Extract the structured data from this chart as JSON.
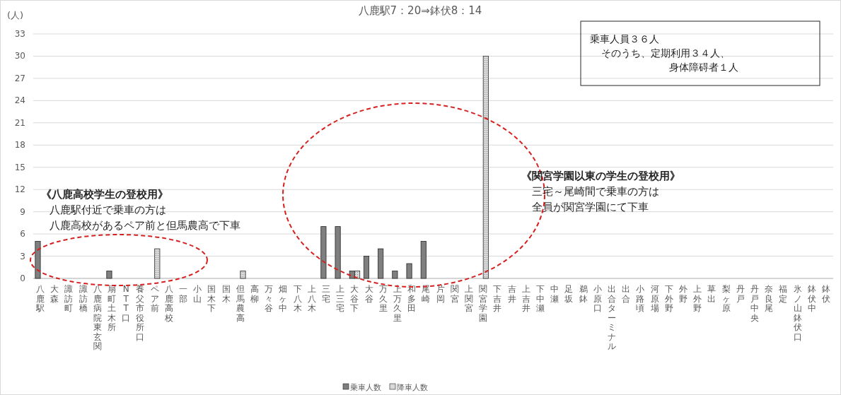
{
  "chart_data": {
    "type": "bar",
    "title": "八鹿駅7：20⇒鉢伏8：14",
    "ylabel": "(人)",
    "categories": [
      "八鹿駅",
      "大森",
      "諏訪町",
      "諏訪橋",
      "八鹿病院東玄関",
      "扇町土木所",
      "NTT口",
      "養父市役所口",
      "ペア前",
      "八鹿高校",
      "一部",
      "小山",
      "国木下",
      "国木",
      "但馬農高",
      "高柳",
      "万々谷",
      "畑ヶ中",
      "下八木",
      "上八木",
      "三宅",
      "上三宅",
      "大谷下",
      "大谷",
      "万久里",
      "上万久里",
      "和多田",
      "尾崎",
      "片岡",
      "関宮",
      "上関宮",
      "関宮学園",
      "下吉井",
      "吉井",
      "上吉井",
      "下中瀬",
      "中瀬",
      "足坂",
      "鵜鉢",
      "小原口",
      "出合ターミナル",
      "出合",
      "小路頃",
      "河原場",
      "下外野",
      "外野",
      "上外野",
      "草出",
      "梨ヶ原",
      "丹戸",
      "丹戸中央",
      "奈良尾",
      "福定",
      "氷ノ山鉢伏口",
      "鉢伏中",
      "鉢伏"
    ],
    "series": [
      {
        "name": "乗車人数",
        "color": "#7f7f7f",
        "values": [
          5,
          0,
          0,
          0,
          0,
          1,
          0,
          0,
          0,
          0,
          0,
          0,
          0,
          0,
          0,
          0,
          0,
          0,
          0,
          0,
          7,
          7,
          1,
          3,
          4,
          1,
          2,
          5,
          0,
          0,
          0,
          0,
          0,
          0,
          0,
          0,
          0,
          0,
          0,
          0,
          0,
          0,
          0,
          0,
          0,
          0,
          0,
          0,
          0,
          0,
          0,
          0,
          0,
          0,
          0,
          0
        ]
      },
      {
        "name": "降車人数",
        "color": "#d9d9d9",
        "values": [
          0,
          0,
          0,
          0,
          0,
          0,
          0,
          0,
          4,
          0,
          0,
          0,
          0,
          0,
          1,
          0,
          0,
          0,
          0,
          0,
          0,
          0,
          1,
          0,
          0,
          0,
          0,
          0,
          0,
          0,
          0,
          30,
          0,
          0,
          0,
          0,
          0,
          0,
          0,
          0,
          0,
          0,
          0,
          0,
          0,
          0,
          0,
          0,
          0,
          0,
          0,
          0,
          0,
          0,
          0,
          0
        ]
      }
    ],
    "ylim": [
      0,
      33
    ],
    "yticks": [
      0,
      3,
      6,
      9,
      12,
      15,
      18,
      21,
      24,
      27,
      30,
      33
    ],
    "grid": "y",
    "legend": "bottom",
    "annotations": [
      "乗車人員３６人",
      "そのうち、定期利用３４人、",
      "身体障碍者１人",
      "《八鹿高校学生の登校用》",
      "八鹿駅付近で乗車の方は",
      "八鹿高校があるペア前と但馬農高で下車",
      "《関宮学園以東の学生の登校用》",
      "三宅～尾崎間で乗車の方は",
      "全員が関宮学園にて下車"
    ]
  }
}
